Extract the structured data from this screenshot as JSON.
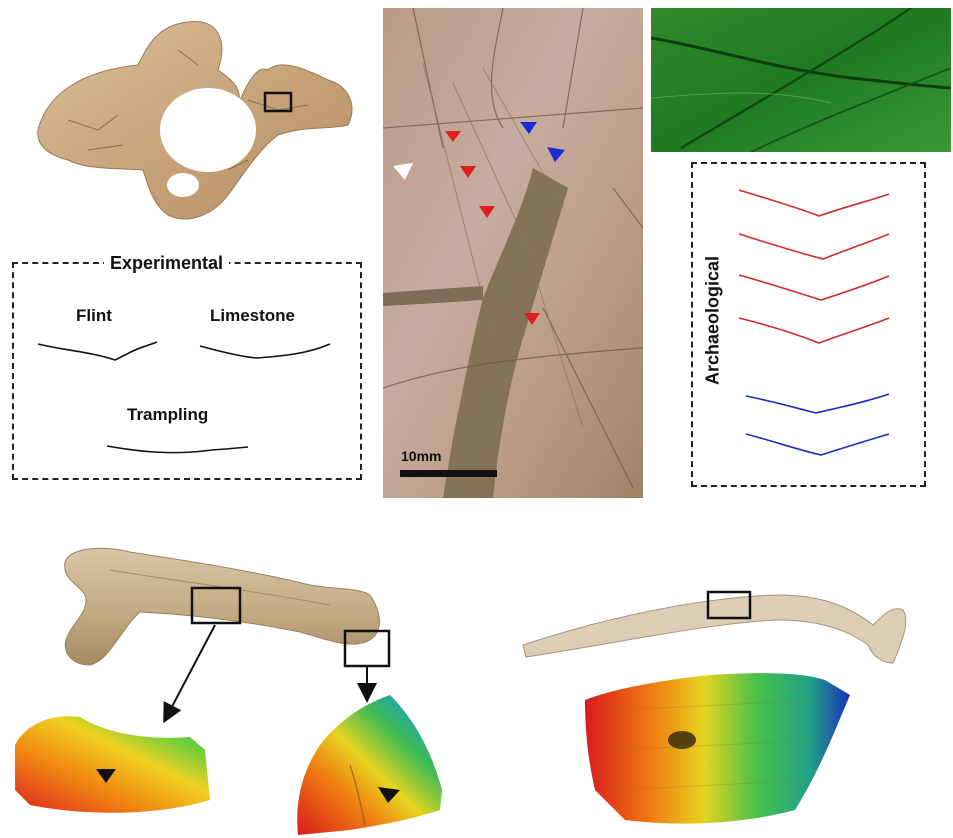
{
  "experimental_panel": {
    "title": "Experimental",
    "profiles": [
      {
        "label": "Flint"
      },
      {
        "label": "Limestone"
      },
      {
        "label": "Trampling"
      }
    ]
  },
  "archaeological_panel": {
    "title": "Archaeological",
    "profile_colors": [
      "#d42a2a",
      "#d42a2a",
      "#d42a2a",
      "#d42a2a",
      "#1a2fbf",
      "#1a2fbf"
    ]
  },
  "photo_panel": {
    "scale_bar_label": "10mm",
    "marker_colors": {
      "red": "#e01e1e",
      "blue": "#1e2ad6",
      "white": "#ffffff"
    }
  },
  "bones": {
    "pelvis": "pelvis fragment with marked area",
    "femur": "long bone with two marked areas",
    "rib": "rib with marked area"
  }
}
